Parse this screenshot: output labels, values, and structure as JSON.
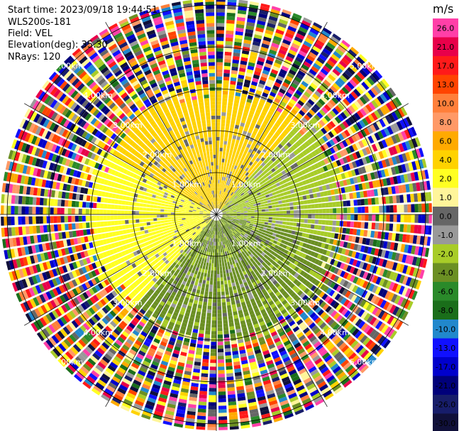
{
  "header": {
    "start_time": "Start time: 2023/09/18 19:44:51",
    "instrument": "WLS200s-181",
    "field": "Field: VEL",
    "elevation": "Elevation(deg): 35.30",
    "nrays": "NRays: 120"
  },
  "chart_data": {
    "type": "heatmap",
    "projection": "polar-ppi",
    "field": "VEL",
    "n_rays": 120,
    "range_rings_km": [
      1,
      2,
      3,
      4,
      5
    ],
    "max_range_km": 5.3,
    "ring_labels": [
      "1.00km",
      "2.00km",
      "3.00km",
      "4.00km",
      "5.00km"
    ],
    "colorbar": {
      "unit": "m/s",
      "tick_labels": [
        "26.0",
        "21.0",
        "17.0",
        "13.0",
        "10.0",
        "8.0",
        "6.0",
        "4.0",
        "2.0",
        "1.0",
        "0.0",
        "-1.0",
        "-2.0",
        "-4.0",
        "-6.0",
        "-8.0",
        "-10.0",
        "-13.0",
        "-17.0",
        "-21.0",
        "-26.0",
        "-30.0"
      ],
      "colors": [
        "#ff3fa8",
        "#e8004a",
        "#ff1a1a",
        "#ff4400",
        "#ff7f3a",
        "#ff9966",
        "#ffaa00",
        "#ffd200",
        "#ffff22",
        "#fff59a",
        "#666666",
        "#999999",
        "#a8cc28",
        "#6b8f23",
        "#2a8a2a",
        "#1a6e1a",
        "#2188cc",
        "#1010ff",
        "#0000cc",
        "#00007a",
        "#171d6a",
        "#10103a"
      ]
    },
    "sectors": [
      {
        "from_deg": 300,
        "to_deg": 40,
        "dominant_velocity": "2.0 to 4.0"
      },
      {
        "from_deg": 40,
        "to_deg": 100,
        "dominant_velocity": "-2.0 to -4.0"
      },
      {
        "from_deg": 100,
        "to_deg": 220,
        "dominant_velocity": "-4.0 to -6.0"
      },
      {
        "from_deg": 220,
        "to_deg": 300,
        "dominant_velocity": "0.0 to 2.0"
      }
    ],
    "clean_range_km": 3.3,
    "noise_beyond_km": 3.3
  }
}
